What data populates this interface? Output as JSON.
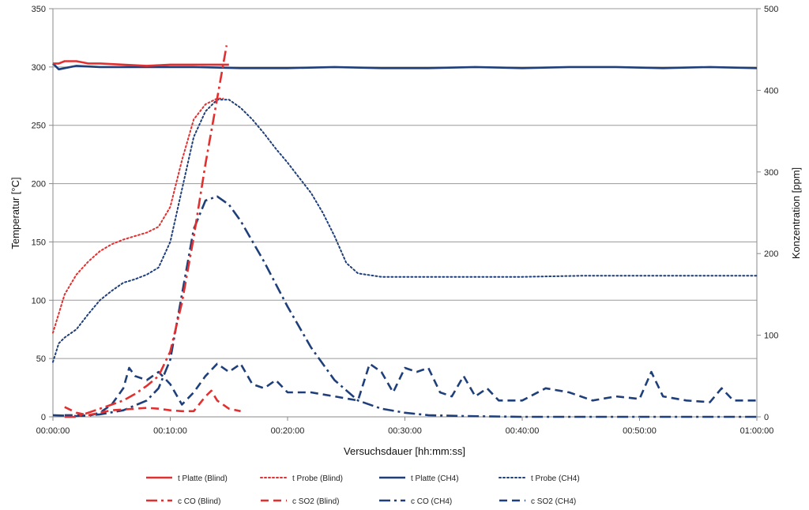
{
  "chart_data": {
    "type": "line",
    "title": "",
    "xlabel": "Versuchsdauer [hh:mm:ss]",
    "ylabel_left": "Temperatur [°C]",
    "ylabel_right": "Konzentration [ppm]",
    "xlim_minutes": [
      0,
      60
    ],
    "ylim_left": [
      0,
      350
    ],
    "ylim_right": [
      0,
      500
    ],
    "x_ticks": [
      "00:00:00",
      "00:10:00",
      "00:20:00",
      "00:30:00",
      "00:40:00",
      "00:50:00",
      "01:00:00"
    ],
    "y_ticks_left": [
      0,
      50,
      100,
      150,
      200,
      250,
      300,
      350
    ],
    "y_ticks_right": [
      0,
      100,
      200,
      300,
      400,
      500
    ],
    "grid": "horizontal",
    "legend_position": "bottom",
    "colors": {
      "blind": "#e03030",
      "ch4": "#1f3f7a"
    },
    "series": [
      {
        "name": "t Platte (Blind)",
        "axis": "left",
        "color": "#e03030",
        "style": "solid",
        "x": [
          0,
          0.5,
          1,
          2,
          3,
          4,
          6,
          8,
          10,
          12,
          14,
          15
        ],
        "y": [
          303,
          303,
          305,
          305,
          303,
          303,
          302,
          301,
          302,
          302,
          302,
          302
        ]
      },
      {
        "name": "t Probe (Blind)",
        "axis": "left",
        "color": "#e03030",
        "style": "dotted",
        "x": [
          0,
          1,
          2,
          3,
          4,
          5,
          6,
          7,
          8,
          9,
          10,
          11,
          12,
          13,
          14,
          14.5
        ],
        "y": [
          72,
          105,
          122,
          133,
          142,
          148,
          152,
          155,
          158,
          163,
          180,
          220,
          255,
          268,
          273,
          273
        ]
      },
      {
        "name": "t Platte (CH4)",
        "axis": "left",
        "color": "#1f3f7a",
        "style": "solid",
        "x": [
          0,
          0.5,
          1,
          2,
          4,
          8,
          12,
          16,
          20,
          24,
          28,
          32,
          36,
          40,
          44,
          48,
          52,
          56,
          60
        ],
        "y": [
          303,
          298,
          299,
          301,
          300,
          300,
          300,
          299,
          299,
          300,
          299,
          299,
          300,
          299,
          300,
          300,
          299,
          300,
          299
        ]
      },
      {
        "name": "t Probe (CH4)",
        "axis": "left",
        "color": "#1f3f7a",
        "style": "dotted",
        "x": [
          0,
          0.5,
          1,
          2,
          3,
          4,
          5,
          6,
          7,
          8,
          9,
          10,
          11,
          12,
          13,
          14,
          15,
          16,
          17,
          18,
          19,
          20,
          21,
          22,
          23,
          24,
          25,
          26,
          28,
          30,
          35,
          40,
          45,
          50,
          55,
          60
        ],
        "y": [
          47,
          63,
          68,
          75,
          88,
          100,
          108,
          115,
          118,
          122,
          128,
          150,
          195,
          240,
          262,
          272,
          272,
          265,
          255,
          243,
          230,
          218,
          205,
          192,
          175,
          155,
          132,
          123,
          120,
          120,
          120,
          120,
          121,
          121,
          121,
          121
        ]
      },
      {
        "name": "c CO (Blind)",
        "axis": "right",
        "color": "#e03030",
        "style": "dashdot",
        "x": [
          1,
          2,
          3,
          4,
          5,
          6,
          7,
          8,
          9,
          10,
          11,
          12,
          13,
          14,
          14.8
        ],
        "y": [
          0,
          0,
          5,
          10,
          15,
          20,
          28,
          38,
          50,
          80,
          140,
          220,
          310,
          390,
          455
        ]
      },
      {
        "name": "c SO2 (Blind)",
        "axis": "right",
        "color": "#e03030",
        "style": "dashed",
        "x": [
          1,
          2,
          3,
          4,
          5,
          6,
          7,
          8,
          9,
          10,
          11,
          12,
          13,
          13.5,
          14,
          15,
          16
        ],
        "y": [
          12,
          5,
          2,
          5,
          8,
          9,
          10,
          11,
          10,
          8,
          7,
          7,
          25,
          32,
          20,
          10,
          7
        ]
      },
      {
        "name": "c CO (CH4)",
        "axis": "right",
        "color": "#1f3f7a",
        "style": "dashdot",
        "x": [
          0,
          2,
          4,
          6,
          8,
          9,
          10,
          11,
          12,
          13,
          14,
          15,
          16,
          18,
          20,
          22,
          24,
          26,
          28,
          30,
          32,
          35,
          40,
          50,
          60
        ],
        "y": [
          2,
          1,
          3,
          8,
          20,
          35,
          70,
          150,
          230,
          265,
          270,
          260,
          240,
          190,
          135,
          85,
          45,
          20,
          10,
          5,
          2,
          1,
          0,
          0,
          0
        ]
      },
      {
        "name": "c SO2 (CH4)",
        "axis": "right",
        "color": "#1f3f7a",
        "style": "dashed",
        "x": [
          1,
          2,
          3,
          4,
          5,
          6,
          6.5,
          7,
          8,
          9,
          10,
          11,
          12,
          13,
          14,
          15,
          16,
          17,
          18,
          19,
          20,
          22,
          24,
          26,
          27,
          28,
          29,
          30,
          31,
          32,
          33,
          34,
          35,
          36,
          37,
          38,
          40,
          42,
          44,
          46,
          48,
          50,
          51,
          52,
          54,
          56,
          57,
          58,
          60
        ],
        "y": [
          2,
          2,
          1,
          5,
          15,
          35,
          60,
          50,
          45,
          55,
          40,
          15,
          30,
          50,
          65,
          55,
          65,
          40,
          35,
          45,
          30,
          30,
          25,
          20,
          65,
          55,
          30,
          60,
          55,
          60,
          30,
          25,
          50,
          25,
          35,
          20,
          20,
          35,
          30,
          20,
          25,
          22,
          55,
          25,
          20,
          18,
          35,
          20,
          20
        ]
      }
    ]
  }
}
